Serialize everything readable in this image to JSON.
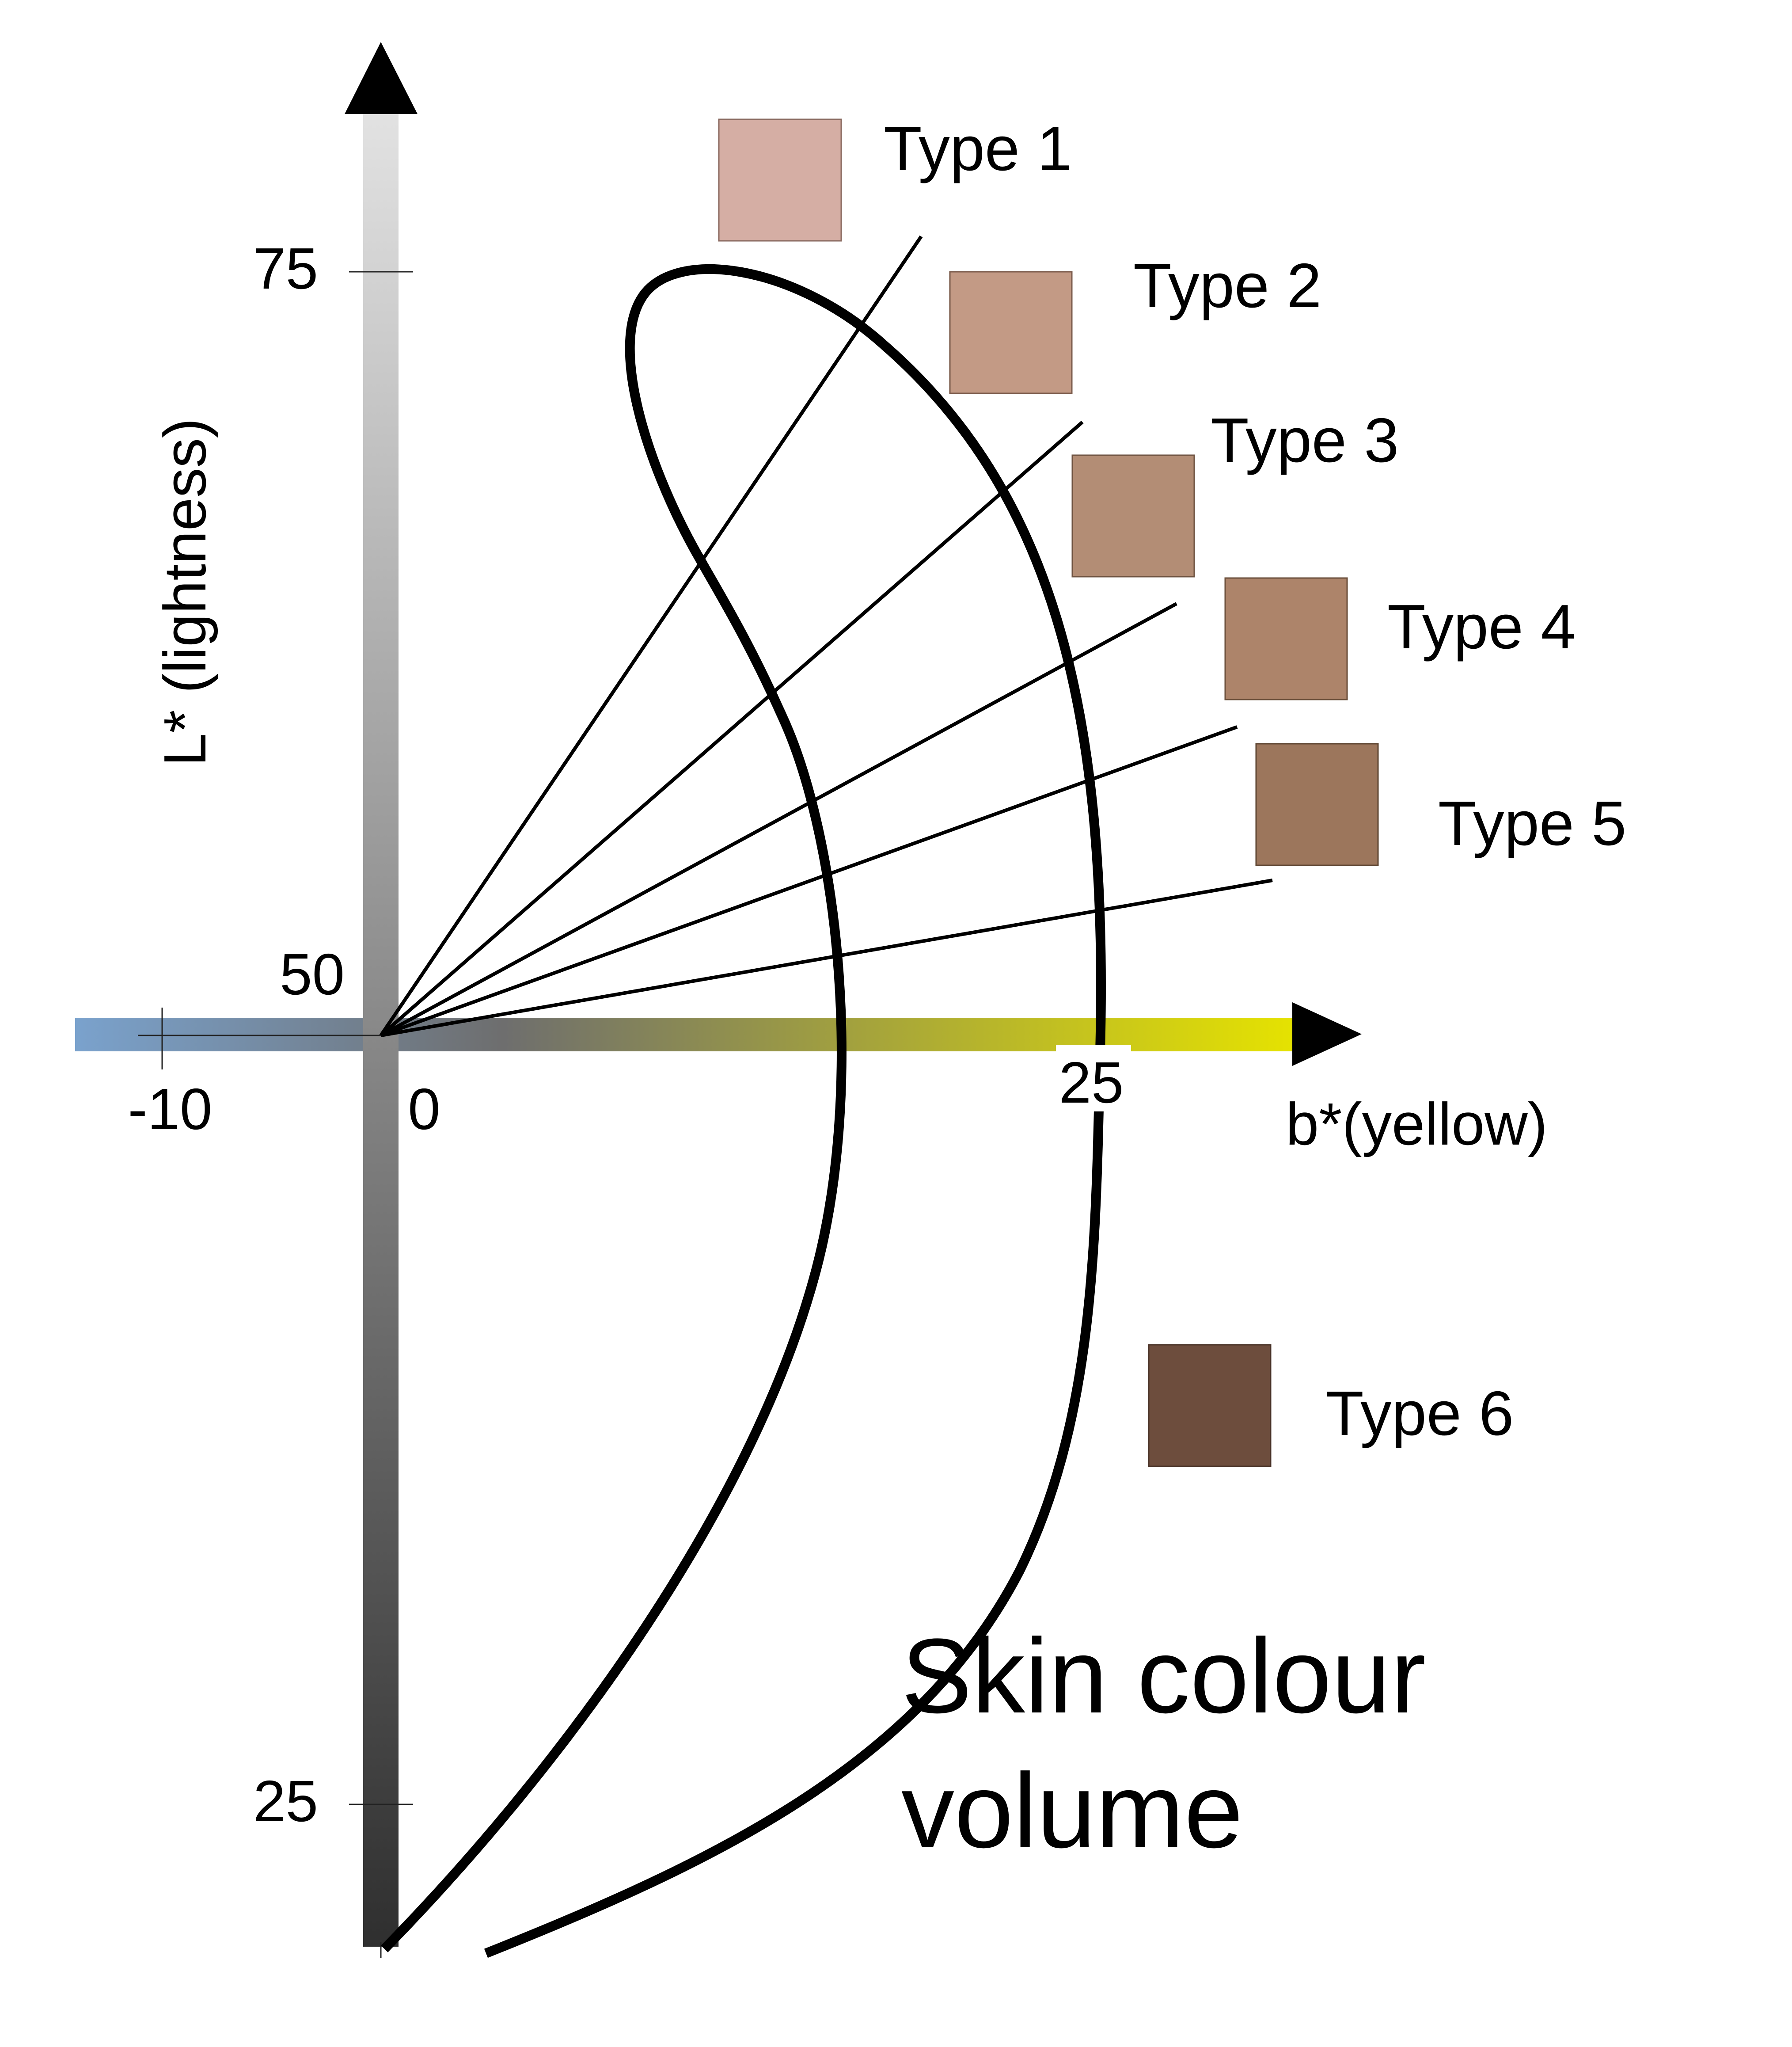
{
  "axes": {
    "vertical": {
      "label": "L* (lightness)",
      "ticks": [
        {
          "label": "75",
          "value": 75
        },
        {
          "label": "50",
          "value": 50
        },
        {
          "label": "25",
          "value": 25
        }
      ],
      "gradient": [
        "#e2e2e2",
        "#2f2f2f"
      ]
    },
    "horizontal": {
      "label": "b*(yellow)",
      "ticks": [
        {
          "label": "-10",
          "value": -10
        },
        {
          "label": "0",
          "value": 0
        },
        {
          "label": "25",
          "value": 25
        }
      ],
      "gradient": [
        "#7aa2cd",
        "#6e6e6e",
        "#e6e300"
      ]
    }
  },
  "skin_types": [
    {
      "label": "Type 1",
      "color": "#d5aea4"
    },
    {
      "label": "Type 2",
      "color": "#c39a85"
    },
    {
      "label": "Type 3",
      "color": "#b38d75"
    },
    {
      "label": "Type 4",
      "color": "#ad846a"
    },
    {
      "label": "Type 5",
      "color": "#9c765c"
    },
    {
      "label": "Type 6",
      "color": "#6d4d3d"
    }
  ],
  "volume_label": {
    "line1": "Skin colour",
    "line2": "volume"
  }
}
